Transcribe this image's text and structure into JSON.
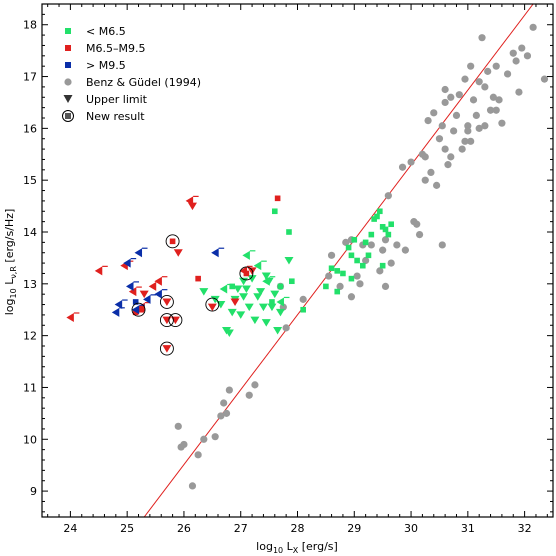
{
  "chart_data": {
    "type": "scatter",
    "title": "",
    "xlabel": {
      "main": "log",
      "sub": "10",
      "rest": " L",
      "sub2": "X",
      "tail": " [erg/s]"
    },
    "ylabel": {
      "main": "log",
      "sub": "10",
      "rest": " L",
      "sub2": "ν,R",
      "tail": " [erg/s/Hz]"
    },
    "xlim": [
      23.5,
      32.5
    ],
    "ylim": [
      8.5,
      18.4
    ],
    "xticks": [
      "24",
      "25",
      "26",
      "27",
      "28",
      "29",
      "30",
      "31",
      "32"
    ],
    "yticks": [
      "9",
      "10",
      "11",
      "12",
      "13",
      "14",
      "15",
      "16",
      "17",
      "18"
    ],
    "colors": {
      "green": "#22e06a",
      "red": "#e0201e",
      "blue": "#0a2ea8",
      "gray": "#999999",
      "line": "#e0201e"
    },
    "legend": {
      "position": "top-left",
      "entries": [
        {
          "label": "< M6.5",
          "marker": "square",
          "color": "#22e06a"
        },
        {
          "label": "M6.5–M9.5",
          "marker": "square",
          "color": "#e0201e"
        },
        {
          "label": "> M9.5",
          "marker": "square",
          "color": "#0a2ea8"
        },
        {
          "label": "Benz & Güdel (1994)",
          "marker": "circle",
          "color": "#999999"
        },
        {
          "label": "Upper limit",
          "marker": "triangle-down",
          "color": "#333333"
        },
        {
          "label": "New result",
          "marker": "circled-square",
          "color": "#555555"
        }
      ]
    },
    "relation_line": {
      "x1": 25.3,
      "y1": 8.5,
      "x2": 32.15,
      "y2": 18.4
    },
    "series": [
      {
        "name": "Benz & Güdel (1994)",
        "marker": "circle",
        "color": "#999999",
        "points": [
          [
            25.9,
            10.25
          ],
          [
            25.95,
            9.85
          ],
          [
            26.0,
            9.9
          ],
          [
            26.15,
            9.1
          ],
          [
            26.25,
            9.7
          ],
          [
            26.35,
            10.0
          ],
          [
            26.55,
            10.05
          ],
          [
            26.65,
            10.45
          ],
          [
            26.7,
            10.7
          ],
          [
            26.75,
            10.5
          ],
          [
            26.8,
            10.95
          ],
          [
            27.15,
            10.85
          ],
          [
            27.25,
            11.05
          ],
          [
            27.8,
            12.15
          ],
          [
            27.75,
            12.55
          ],
          [
            27.7,
            12.95
          ],
          [
            28.1,
            12.7
          ],
          [
            28.55,
            13.15
          ],
          [
            28.6,
            13.55
          ],
          [
            28.75,
            12.95
          ],
          [
            28.85,
            13.8
          ],
          [
            28.95,
            13.85
          ],
          [
            29.05,
            13.15
          ],
          [
            29.15,
            13.75
          ],
          [
            29.3,
            13.75
          ],
          [
            29.45,
            13.25
          ],
          [
            29.55,
            13.85
          ],
          [
            29.6,
            14.7
          ],
          [
            29.65,
            13.4
          ],
          [
            29.75,
            13.75
          ],
          [
            29.85,
            15.25
          ],
          [
            29.9,
            13.65
          ],
          [
            30.0,
            15.35
          ],
          [
            30.1,
            14.15
          ],
          [
            30.2,
            15.5
          ],
          [
            30.25,
            15.0
          ],
          [
            30.3,
            16.15
          ],
          [
            30.35,
            15.15
          ],
          [
            30.4,
            16.3
          ],
          [
            30.45,
            14.9
          ],
          [
            30.5,
            15.8
          ],
          [
            30.55,
            16.05
          ],
          [
            30.6,
            15.6
          ],
          [
            30.6,
            16.75
          ],
          [
            30.65,
            15.3
          ],
          [
            30.7,
            16.6
          ],
          [
            30.75,
            15.95
          ],
          [
            30.8,
            16.25
          ],
          [
            30.85,
            16.65
          ],
          [
            30.9,
            15.6
          ],
          [
            30.95,
            16.95
          ],
          [
            31.0,
            16.05
          ],
          [
            31.05,
            15.75
          ],
          [
            31.1,
            16.55
          ],
          [
            31.15,
            16.25
          ],
          [
            31.2,
            16.9
          ],
          [
            31.25,
            17.75
          ],
          [
            31.3,
            16.05
          ],
          [
            31.35,
            17.1
          ],
          [
            31.4,
            16.35
          ],
          [
            31.5,
            17.2
          ],
          [
            31.55,
            16.55
          ],
          [
            31.6,
            16.1
          ],
          [
            31.7,
            17.05
          ],
          [
            31.8,
            17.45
          ],
          [
            31.9,
            16.7
          ],
          [
            31.95,
            17.55
          ],
          [
            32.05,
            17.4
          ],
          [
            32.15,
            17.95
          ],
          [
            32.35,
            16.95
          ],
          [
            29.55,
            12.95
          ],
          [
            29.2,
            13.45
          ],
          [
            30.15,
            13.95
          ],
          [
            30.55,
            13.75
          ],
          [
            30.95,
            15.75
          ],
          [
            30.7,
            15.45
          ],
          [
            31.0,
            15.95
          ],
          [
            31.3,
            16.8
          ],
          [
            31.5,
            16.35
          ],
          [
            30.6,
            16.5
          ],
          [
            30.25,
            15.45
          ],
          [
            29.5,
            13.65
          ],
          [
            28.95,
            12.75
          ],
          [
            29.1,
            13.0
          ],
          [
            30.05,
            14.2
          ],
          [
            31.85,
            17.3
          ],
          [
            31.2,
            16.0
          ],
          [
            31.45,
            16.6
          ],
          [
            31.05,
            17.2
          ]
        ]
      },
      {
        "name": "< M6.5",
        "marker": "square",
        "color": "#22e06a",
        "points": [
          [
            27.6,
            14.4
          ],
          [
            27.85,
            14.0
          ],
          [
            27.9,
            13.05
          ],
          [
            28.1,
            12.5
          ],
          [
            28.5,
            12.95
          ],
          [
            28.6,
            13.3
          ],
          [
            28.7,
            13.25
          ],
          [
            28.8,
            13.2
          ],
          [
            28.9,
            13.7
          ],
          [
            28.95,
            13.55
          ],
          [
            29.0,
            13.85
          ],
          [
            29.05,
            13.45
          ],
          [
            29.15,
            13.35
          ],
          [
            29.25,
            13.55
          ],
          [
            29.3,
            13.95
          ],
          [
            29.35,
            14.25
          ],
          [
            29.4,
            14.3
          ],
          [
            29.45,
            14.4
          ],
          [
            29.5,
            14.1
          ],
          [
            29.55,
            14.05
          ],
          [
            29.6,
            13.95
          ],
          [
            29.65,
            14.15
          ],
          [
            29.5,
            13.35
          ],
          [
            26.85,
            12.95
          ],
          [
            27.55,
            12.65
          ],
          [
            27.7,
            12.95
          ],
          [
            29.2,
            13.8
          ],
          [
            28.95,
            13.1
          ],
          [
            28.7,
            12.85
          ]
        ]
      },
      {
        "name": "< M6.5 upper limit",
        "marker": "triangle-down",
        "color": "#22e06a",
        "points": [
          [
            26.65,
            12.6
          ],
          [
            26.75,
            12.1
          ],
          [
            26.8,
            12.05
          ],
          [
            26.85,
            12.45
          ],
          [
            26.9,
            12.7
          ],
          [
            26.95,
            12.9
          ],
          [
            27.0,
            12.4
          ],
          [
            27.05,
            12.75
          ],
          [
            27.1,
            12.9
          ],
          [
            27.15,
            12.55
          ],
          [
            27.2,
            13.1
          ],
          [
            27.25,
            12.3
          ],
          [
            27.3,
            12.75
          ],
          [
            27.35,
            12.85
          ],
          [
            27.4,
            12.55
          ],
          [
            27.45,
            12.25
          ],
          [
            27.5,
            13.05
          ],
          [
            27.55,
            12.55
          ],
          [
            27.6,
            12.8
          ],
          [
            27.7,
            12.45
          ],
          [
            27.85,
            13.45
          ],
          [
            26.35,
            12.85
          ],
          [
            26.55,
            12.7
          ],
          [
            27.65,
            12.1
          ],
          [
            27.45,
            13.15
          ],
          [
            27.05,
            13.05
          ]
        ]
      },
      {
        "name": "< M6.5 leftward limit",
        "marker": "triangle-left",
        "color": "#22e06a",
        "points": [
          [
            27.1,
            13.55
          ],
          [
            27.3,
            13.35
          ],
          [
            27.45,
            13.05
          ],
          [
            27.7,
            12.65
          ],
          [
            26.7,
            12.9
          ]
        ]
      },
      {
        "name": "M6.5–M9.5",
        "marker": "square",
        "color": "#e0201e",
        "points": [
          [
            27.65,
            14.65
          ],
          [
            26.25,
            13.1
          ],
          [
            25.8,
            13.82
          ],
          [
            27.1,
            13.2
          ],
          [
            25.15,
            12.45
          ],
          [
            25.25,
            12.5
          ]
        ]
      },
      {
        "name": "M6.5–M9.5 upper limit",
        "marker": "triangle-down",
        "color": "#e0201e",
        "points": [
          [
            25.7,
            12.65
          ],
          [
            25.7,
            12.3
          ],
          [
            25.85,
            12.3
          ],
          [
            25.7,
            11.75
          ],
          [
            26.5,
            12.55
          ],
          [
            25.9,
            13.6
          ],
          [
            26.9,
            12.65
          ],
          [
            27.2,
            13.25
          ],
          [
            25.3,
            12.8
          ],
          [
            26.15,
            14.5
          ]
        ]
      },
      {
        "name": "M6.5–M9.5 leftward limit",
        "marker": "triangle-left",
        "color": "#e0201e",
        "points": [
          [
            24.0,
            12.35
          ],
          [
            24.5,
            13.25
          ],
          [
            24.95,
            13.35
          ],
          [
            25.1,
            12.85
          ],
          [
            25.25,
            12.55
          ],
          [
            25.45,
            12.95
          ],
          [
            25.55,
            13.05
          ],
          [
            26.1,
            14.6
          ],
          [
            27.05,
            13.25
          ]
        ]
      },
      {
        "name": "> M9.5",
        "marker": "square",
        "color": "#0a2ea8",
        "points": [
          [
            25.15,
            12.65
          ]
        ]
      },
      {
        "name": "> M9.5 leftward limit",
        "marker": "triangle-left",
        "color": "#0a2ea8",
        "points": [
          [
            24.85,
            12.6
          ],
          [
            25.05,
            12.95
          ],
          [
            25.2,
            13.6
          ],
          [
            25.35,
            12.7
          ],
          [
            25.55,
            12.8
          ],
          [
            25.15,
            12.5
          ],
          [
            24.8,
            12.45
          ],
          [
            26.55,
            13.6
          ],
          [
            25.0,
            13.4
          ]
        ]
      },
      {
        "name": "New result",
        "marker": "circle-ring",
        "color": "#000000",
        "points": [
          [
            25.8,
            13.82
          ],
          [
            27.1,
            13.2
          ],
          [
            25.7,
            12.65
          ],
          [
            25.2,
            12.5
          ],
          [
            25.7,
            12.3
          ],
          [
            25.85,
            12.3
          ],
          [
            26.5,
            12.6
          ],
          [
            25.7,
            11.75
          ]
        ]
      }
    ]
  }
}
